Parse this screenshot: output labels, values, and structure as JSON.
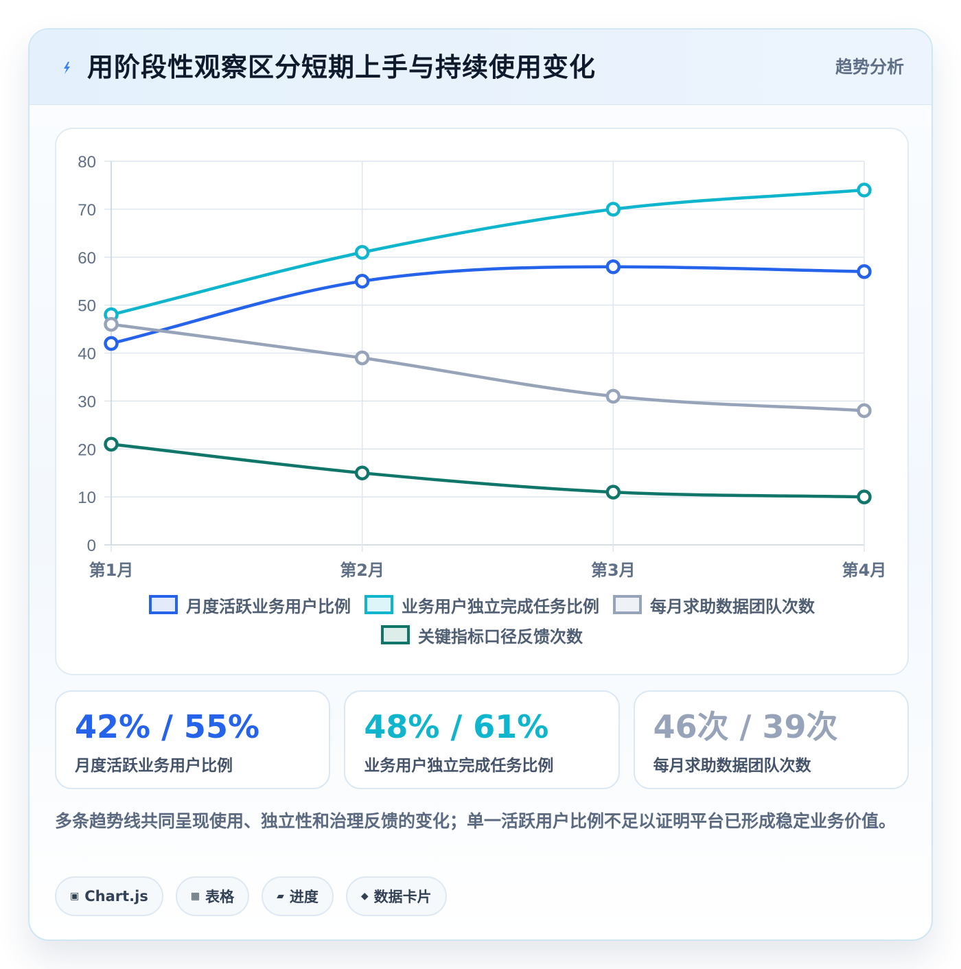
{
  "header": {
    "title": "用阶段性观察区分短期上手与持续使用变化",
    "tag": "趋势分析",
    "icon": "lightning-icon"
  },
  "chart_data": {
    "type": "line",
    "categories": [
      "第1月",
      "第2月",
      "第3月",
      "第4月"
    ],
    "ylim": [
      0,
      80
    ],
    "yticks": [
      0,
      10,
      20,
      30,
      40,
      50,
      60,
      70,
      80
    ],
    "grid": true,
    "legend_position": "bottom",
    "series": [
      {
        "name": "月度活跃业务用户比例",
        "values": [
          42,
          55,
          58,
          57
        ],
        "color": "#2563eb",
        "fill": "#e3ebfb"
      },
      {
        "name": "业务用户独立完成任务比例",
        "values": [
          48,
          61,
          70,
          74
        ],
        "color": "#0fb5cc",
        "fill": "#ddf4f8"
      },
      {
        "name": "每月求助数据团队次数",
        "values": [
          46,
          39,
          31,
          28
        ],
        "color": "#96a3b8",
        "fill": "#eef1f6"
      },
      {
        "name": "关键指标口径反馈次数",
        "values": [
          21,
          15,
          11,
          10
        ],
        "color": "#11766a",
        "fill": "#dcedea"
      }
    ]
  },
  "stats": [
    {
      "value": "42% / 55%",
      "label": "月度活跃业务用户比例",
      "color": "#2563eb"
    },
    {
      "value": "48% / 61%",
      "label": "业务用户独立完成任务比例",
      "color": "#0fb5cc"
    },
    {
      "value": "46次 / 39次",
      "label": "每月求助数据团队次数",
      "color": "#96a3b8"
    }
  ],
  "note": "多条趋势线共同呈现使用、独立性和治理反馈的变化；单一活跃用户比例不足以证明平台已形成稳定业务价值。",
  "chips": [
    {
      "icon": "▣",
      "icon_name": "chart-icon",
      "label": "Chart.js"
    },
    {
      "icon": "▦",
      "icon_name": "table-icon",
      "label": "表格"
    },
    {
      "icon": "▰",
      "icon_name": "progress-icon",
      "label": "进度"
    },
    {
      "icon": "◆",
      "icon_name": "data-card-icon",
      "label": "数据卡片"
    }
  ]
}
